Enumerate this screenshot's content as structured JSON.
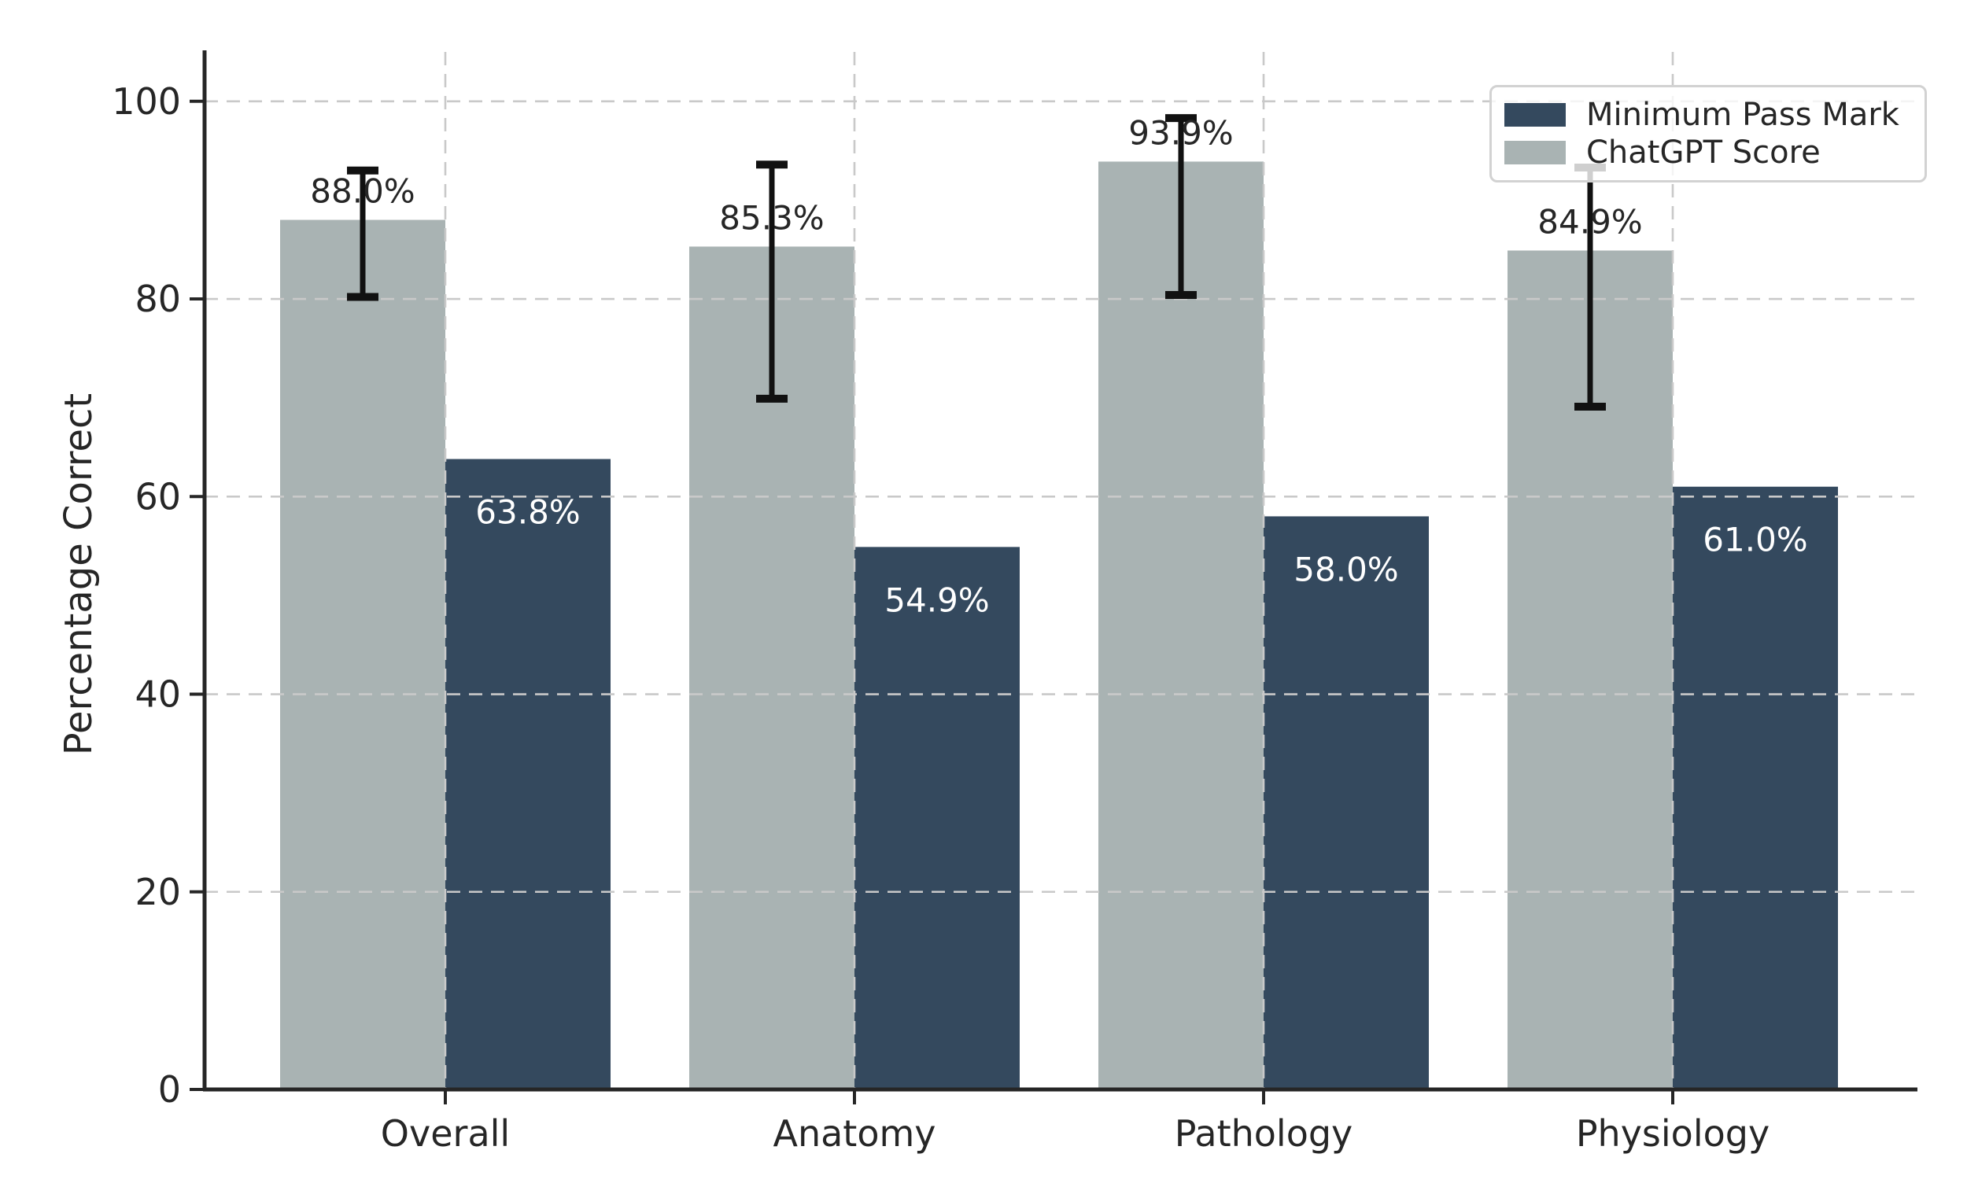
{
  "figure": {
    "background": "#ffffff"
  },
  "chart_data": {
    "type": "bar",
    "title": "",
    "xlabel": "",
    "ylabel": "Percentage Correct",
    "categories": [
      "Overall",
      "Anatomy",
      "Pathology",
      "Physiology"
    ],
    "series": [
      {
        "name": "ChatGPT Score",
        "color": "#a9b3b3",
        "values": [
          88.0,
          85.3,
          93.9,
          84.9
        ],
        "value_labels": [
          "88.0%",
          "85.3%",
          "93.9%",
          "84.9%"
        ],
        "error_low": [
          80.2,
          69.9,
          80.4,
          69.1
        ],
        "error_high": [
          93.0,
          93.6,
          98.3,
          93.3
        ],
        "label_color": "#262626",
        "label_placement": "above-bar"
      },
      {
        "name": "Minimum Pass Mark",
        "color": "#34495e",
        "values": [
          63.8,
          54.9,
          58.0,
          61.0
        ],
        "value_labels": [
          "63.8%",
          "54.9%",
          "58.0%",
          "61.0%"
        ],
        "label_color": "#ffffff",
        "label_placement": "inside-bar-top"
      }
    ],
    "bar_order_in_group": [
      "ChatGPT Score",
      "Minimum Pass Mark"
    ],
    "ylim": [
      0,
      105
    ],
    "yticks": [
      0,
      20,
      40,
      60,
      80,
      100
    ],
    "ytick_labels": [
      "0",
      "20",
      "40",
      "60",
      "80",
      "100"
    ],
    "grid": {
      "horizontal": true,
      "vertical": true,
      "style": "dashed",
      "color": "#c9c9c9",
      "above_bars": true
    },
    "error_bar_color": "#111111",
    "axis_color": "#262626",
    "legend": {
      "position": "upper right",
      "items": [
        {
          "label": "Minimum Pass Mark",
          "color": "#34495e"
        },
        {
          "label": "ChatGPT Score",
          "color": "#a9b3b3"
        }
      ]
    }
  }
}
